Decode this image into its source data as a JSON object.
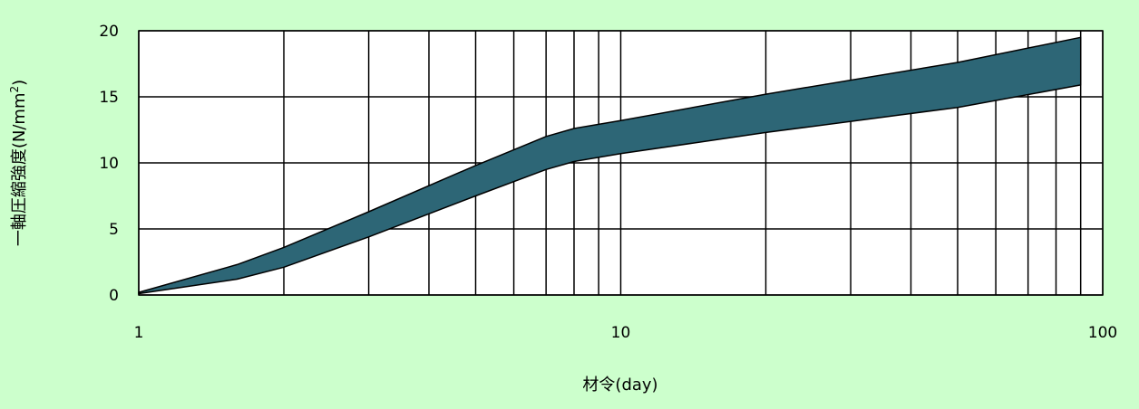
{
  "chart_data": {
    "type": "area",
    "title": "",
    "xlabel": "材令(day)",
    "ylabel_main": "一軸圧縮強度(N/mm",
    "ylabel_sup": "2",
    "ylabel_close": ")",
    "x_scale": "log",
    "xlim": [
      1,
      100
    ],
    "ylim": [
      0,
      20
    ],
    "x_ticks": [
      1,
      10,
      100
    ],
    "x_tick_labels": [
      "1",
      "10",
      "100"
    ],
    "y_ticks": [
      0,
      5,
      10,
      15,
      20
    ],
    "y_tick_labels": [
      "0",
      "5",
      "10",
      "15",
      "20"
    ],
    "grid": true,
    "legend": "none",
    "band": {
      "upper": [
        {
          "x": 1,
          "y": 0.2
        },
        {
          "x": 1.6,
          "y": 2.3
        },
        {
          "x": 2,
          "y": 3.6
        },
        {
          "x": 3,
          "y": 6.3
        },
        {
          "x": 5,
          "y": 9.8
        },
        {
          "x": 7,
          "y": 12.0
        },
        {
          "x": 8,
          "y": 12.6
        },
        {
          "x": 10,
          "y": 13.2
        },
        {
          "x": 20,
          "y": 15.2
        },
        {
          "x": 50,
          "y": 17.6
        },
        {
          "x": 90,
          "y": 19.5
        }
      ],
      "lower": [
        {
          "x": 1,
          "y": 0.1
        },
        {
          "x": 1.6,
          "y": 1.2
        },
        {
          "x": 2,
          "y": 2.1
        },
        {
          "x": 3,
          "y": 4.4
        },
        {
          "x": 5,
          "y": 7.5
        },
        {
          "x": 7,
          "y": 9.5
        },
        {
          "x": 8,
          "y": 10.1
        },
        {
          "x": 10,
          "y": 10.7
        },
        {
          "x": 20,
          "y": 12.3
        },
        {
          "x": 50,
          "y": 14.2
        },
        {
          "x": 90,
          "y": 15.9
        }
      ]
    },
    "colors": {
      "background": "#ccffcc",
      "plot_background": "#ffffff",
      "band_fill": "#2d6676",
      "band_stroke": "#000000",
      "grid": "#000000"
    }
  }
}
